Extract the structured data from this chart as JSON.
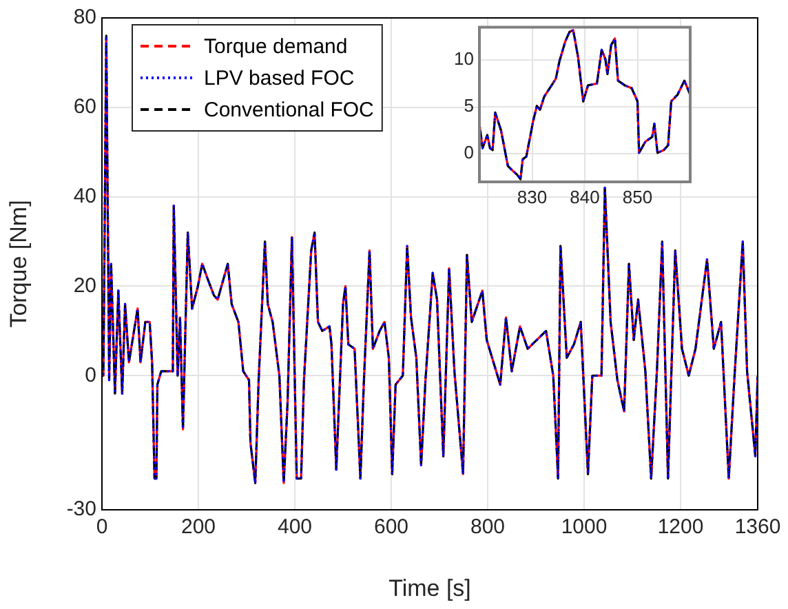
{
  "chart_data": [
    {
      "type": "line",
      "xlabel": "Time [s]",
      "ylabel": "Torque [Nm]",
      "xlim": [
        0,
        1360
      ],
      "xticks": [
        0,
        200,
        400,
        600,
        800,
        1000,
        1200,
        1360
      ],
      "ylim": [
        -30,
        80
      ],
      "yticks": [
        -30,
        0,
        20,
        40,
        60,
        80
      ],
      "grid": true,
      "legend": "top left",
      "marker": "none",
      "x": [
        0,
        3,
        9,
        15,
        19,
        27,
        34,
        42,
        48,
        56,
        74,
        80,
        90,
        99,
        104,
        109,
        113,
        115,
        123,
        147,
        149,
        157,
        162,
        168,
        178,
        187,
        199,
        208,
        218,
        232,
        240,
        261,
        269,
        283,
        293,
        305,
        308,
        318,
        325,
        338,
        344,
        354,
        368,
        377,
        385,
        394,
        404,
        413,
        419,
        434,
        441,
        448,
        457,
        472,
        476,
        486,
        500,
        505,
        511,
        524,
        536,
        543,
        555,
        562,
        576,
        586,
        595,
        602,
        609,
        624,
        633,
        641,
        652,
        662,
        671,
        686,
        695,
        708,
        720,
        731,
        749,
        757,
        767,
        789,
        798,
        826,
        838,
        850,
        867,
        883,
        902,
        921,
        936,
        946,
        951,
        964,
        979,
        993,
        1008,
        1017,
        1036,
        1043,
        1055,
        1069,
        1083,
        1093,
        1103,
        1112,
        1127,
        1139,
        1151,
        1162,
        1174,
        1189,
        1203,
        1217,
        1231,
        1255,
        1269,
        1284,
        1300,
        1312,
        1329,
        1338,
        1355,
        1360
      ],
      "series": [
        {
          "name": "Torque demand",
          "color": "#ff0000",
          "line_style": "dashed",
          "values": [
            0,
            0,
            76,
            -1,
            25,
            -4,
            19,
            -4,
            16,
            3,
            15,
            3,
            12,
            12,
            3,
            -23,
            -23,
            -2,
            1,
            1,
            38,
            0,
            13,
            -12,
            32,
            15,
            20,
            25,
            22,
            18,
            17,
            25,
            16,
            12,
            1,
            -1,
            -15,
            -24,
            -1,
            30,
            16,
            12,
            0,
            -24,
            -6,
            31,
            -23,
            -23,
            -1,
            28,
            32,
            12,
            10,
            11,
            7,
            -21,
            16,
            20,
            7,
            6,
            -23,
            -2,
            28,
            6,
            10,
            12,
            4,
            -22,
            -2,
            0,
            29,
            13,
            4,
            -20,
            -1,
            23,
            17,
            -18,
            24,
            1,
            -22,
            27,
            12,
            19,
            8,
            -2,
            13,
            1,
            11,
            6,
            8,
            10,
            0,
            -23,
            29,
            4,
            7,
            12,
            -22,
            0,
            0,
            42,
            12,
            -1,
            -8,
            25,
            8,
            17,
            1,
            -23,
            1,
            30,
            -23,
            28,
            6,
            0,
            6,
            26,
            6,
            12,
            -23,
            0,
            30,
            1,
            -18,
            0
          ]
        },
        {
          "name": "LPV based FOC",
          "color": "#0000ff",
          "line_style": "dotted",
          "values": [
            0,
            0,
            76,
            -1,
            25,
            -4,
            19,
            -4,
            16,
            3,
            15,
            3,
            12,
            12,
            3,
            -23,
            -23,
            -2,
            1,
            1,
            38,
            0,
            13,
            -12,
            32,
            15,
            20,
            25,
            22,
            18,
            17,
            25,
            16,
            12,
            1,
            -1,
            -15,
            -24,
            -1,
            30,
            16,
            12,
            0,
            -24,
            -6,
            31,
            -23,
            -23,
            -1,
            28,
            32,
            12,
            10,
            11,
            7,
            -21,
            16,
            20,
            7,
            6,
            -23,
            -2,
            28,
            6,
            10,
            12,
            4,
            -22,
            -2,
            0,
            29,
            13,
            4,
            -20,
            -1,
            23,
            17,
            -18,
            24,
            1,
            -22,
            27,
            12,
            19,
            8,
            -2,
            13,
            1,
            11,
            6,
            8,
            10,
            0,
            -23,
            29,
            4,
            7,
            12,
            -22,
            0,
            0,
            42,
            12,
            -1,
            -8,
            25,
            8,
            17,
            1,
            -23,
            1,
            30,
            -23,
            28,
            6,
            0,
            6,
            26,
            6,
            12,
            -23,
            0,
            30,
            1,
            -18,
            0
          ]
        },
        {
          "name": "Conventional FOC",
          "color": "#000000",
          "line_style": "dashed",
          "values": [
            0,
            0,
            76,
            -1,
            25,
            -4,
            19,
            -4,
            16,
            3,
            15,
            3,
            12,
            12,
            3,
            -23,
            -23,
            -2,
            1,
            1,
            38,
            0,
            13,
            -12,
            32,
            15,
            20,
            25,
            22,
            18,
            17,
            25,
            16,
            12,
            1,
            -1,
            -15,
            -24,
            -1,
            30,
            16,
            12,
            0,
            -24,
            -6,
            31,
            -23,
            -23,
            -1,
            28,
            32,
            12,
            10,
            11,
            7,
            -21,
            16,
            20,
            7,
            6,
            -23,
            -2,
            28,
            6,
            10,
            12,
            4,
            -22,
            -2,
            0,
            29,
            13,
            4,
            -20,
            -1,
            23,
            17,
            -18,
            24,
            1,
            -22,
            27,
            12,
            19,
            8,
            -2,
            13,
            1,
            11,
            6,
            8,
            10,
            0,
            -23,
            29,
            4,
            7,
            12,
            -22,
            0,
            0,
            42,
            12,
            -1,
            -8,
            25,
            8,
            17,
            1,
            -23,
            1,
            30,
            -23,
            28,
            6,
            0,
            6,
            26,
            6,
            12,
            -23,
            0,
            30,
            1,
            -18,
            0
          ]
        }
      ]
    },
    {
      "type": "line",
      "xlim": [
        820,
        860
      ],
      "xticks": [
        830,
        840,
        850
      ],
      "ylim": [
        -3,
        13.5
      ],
      "yticks": [
        0,
        5,
        10
      ],
      "grid": true,
      "marker": "none",
      "x": [
        820,
        820.6,
        821.5,
        822,
        822.5,
        823,
        824.1,
        825.4,
        826.3,
        827.1,
        827.8,
        828.2,
        828.9,
        830.2,
        830.9,
        831.5,
        832.3,
        833.7,
        834.5,
        835.2,
        836.3,
        837.1,
        837.8,
        838.7,
        839.7,
        840.6,
        842.3,
        843.2,
        843.9,
        844.3,
        845,
        845.7,
        846.3,
        847.6,
        848.9,
        850,
        850.3,
        851.5,
        852.8,
        853.2,
        853.8,
        855,
        855.8,
        856.4,
        857.6,
        858.9,
        860
      ],
      "series": [
        {
          "color": "#ff0000",
          "line_style": "dashed",
          "values": [
            3.2,
            0.6,
            2,
            0.6,
            0.4,
            4.4,
            2.5,
            -1.3,
            -1.8,
            -2.2,
            -2.7,
            -0.6,
            -0.3,
            3.5,
            5.1,
            4.7,
            6.1,
            7.3,
            8,
            9.9,
            12,
            13,
            13.2,
            10.4,
            5.6,
            7.3,
            7.5,
            11.1,
            10.1,
            8.5,
            11.6,
            12.3,
            7.8,
            7.3,
            7,
            5.6,
            0.1,
            1.3,
            1.8,
            3.2,
            0.1,
            0.4,
            0.9,
            5.6,
            6.3,
            7.8,
            6.3
          ]
        },
        {
          "color": "#0000ff",
          "line_style": "dotted",
          "values": [
            3.2,
            0.6,
            2,
            0.6,
            0.4,
            4.4,
            2.5,
            -1.3,
            -1.8,
            -2.2,
            -2.7,
            -0.6,
            -0.3,
            3.5,
            5.1,
            4.7,
            6.1,
            7.3,
            8,
            9.9,
            12,
            13,
            13.2,
            10.4,
            5.6,
            7.3,
            7.5,
            11.1,
            10.1,
            8.5,
            11.6,
            12.3,
            7.8,
            7.3,
            7,
            5.6,
            0.1,
            1.3,
            1.8,
            3.2,
            0.1,
            0.4,
            0.9,
            5.6,
            6.3,
            7.8,
            6.3
          ]
        },
        {
          "color": "#000000",
          "line_style": "dashed",
          "values": [
            3.2,
            0.6,
            2,
            0.6,
            0.4,
            4.4,
            2.5,
            -1.3,
            -1.8,
            -2.2,
            -2.7,
            -0.6,
            -0.3,
            3.5,
            5.1,
            4.7,
            6.1,
            7.3,
            8,
            9.9,
            12,
            13,
            13.2,
            10.4,
            5.6,
            7.3,
            7.5,
            11.1,
            10.1,
            8.5,
            11.6,
            12.3,
            7.8,
            7.3,
            7,
            5.6,
            0.1,
            1.3,
            1.8,
            3.2,
            0.1,
            0.4,
            0.9,
            5.6,
            6.3,
            7.8,
            6.3
          ]
        }
      ]
    }
  ]
}
